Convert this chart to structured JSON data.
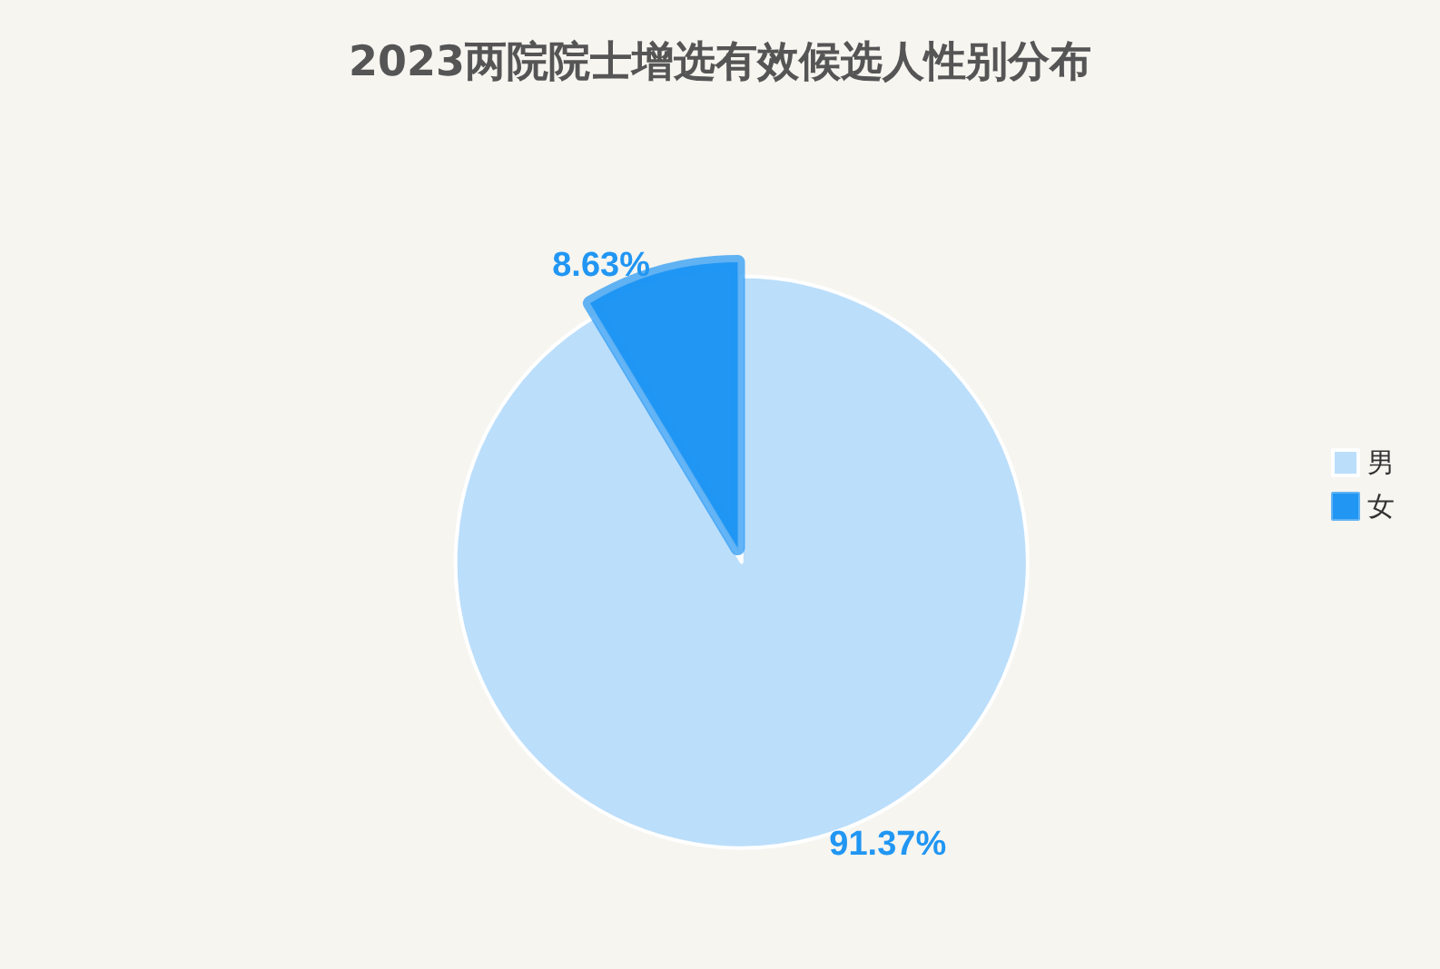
{
  "chart_data": {
    "type": "pie",
    "title": "2023两院院士增选有效候选人性别分布",
    "categories": [
      "男",
      "女"
    ],
    "values": [
      91.37,
      8.63
    ],
    "colors": [
      "#bbdefb",
      "#2196f3"
    ],
    "value_labels": [
      "91.37%",
      "8.63%"
    ],
    "legend": "right"
  }
}
